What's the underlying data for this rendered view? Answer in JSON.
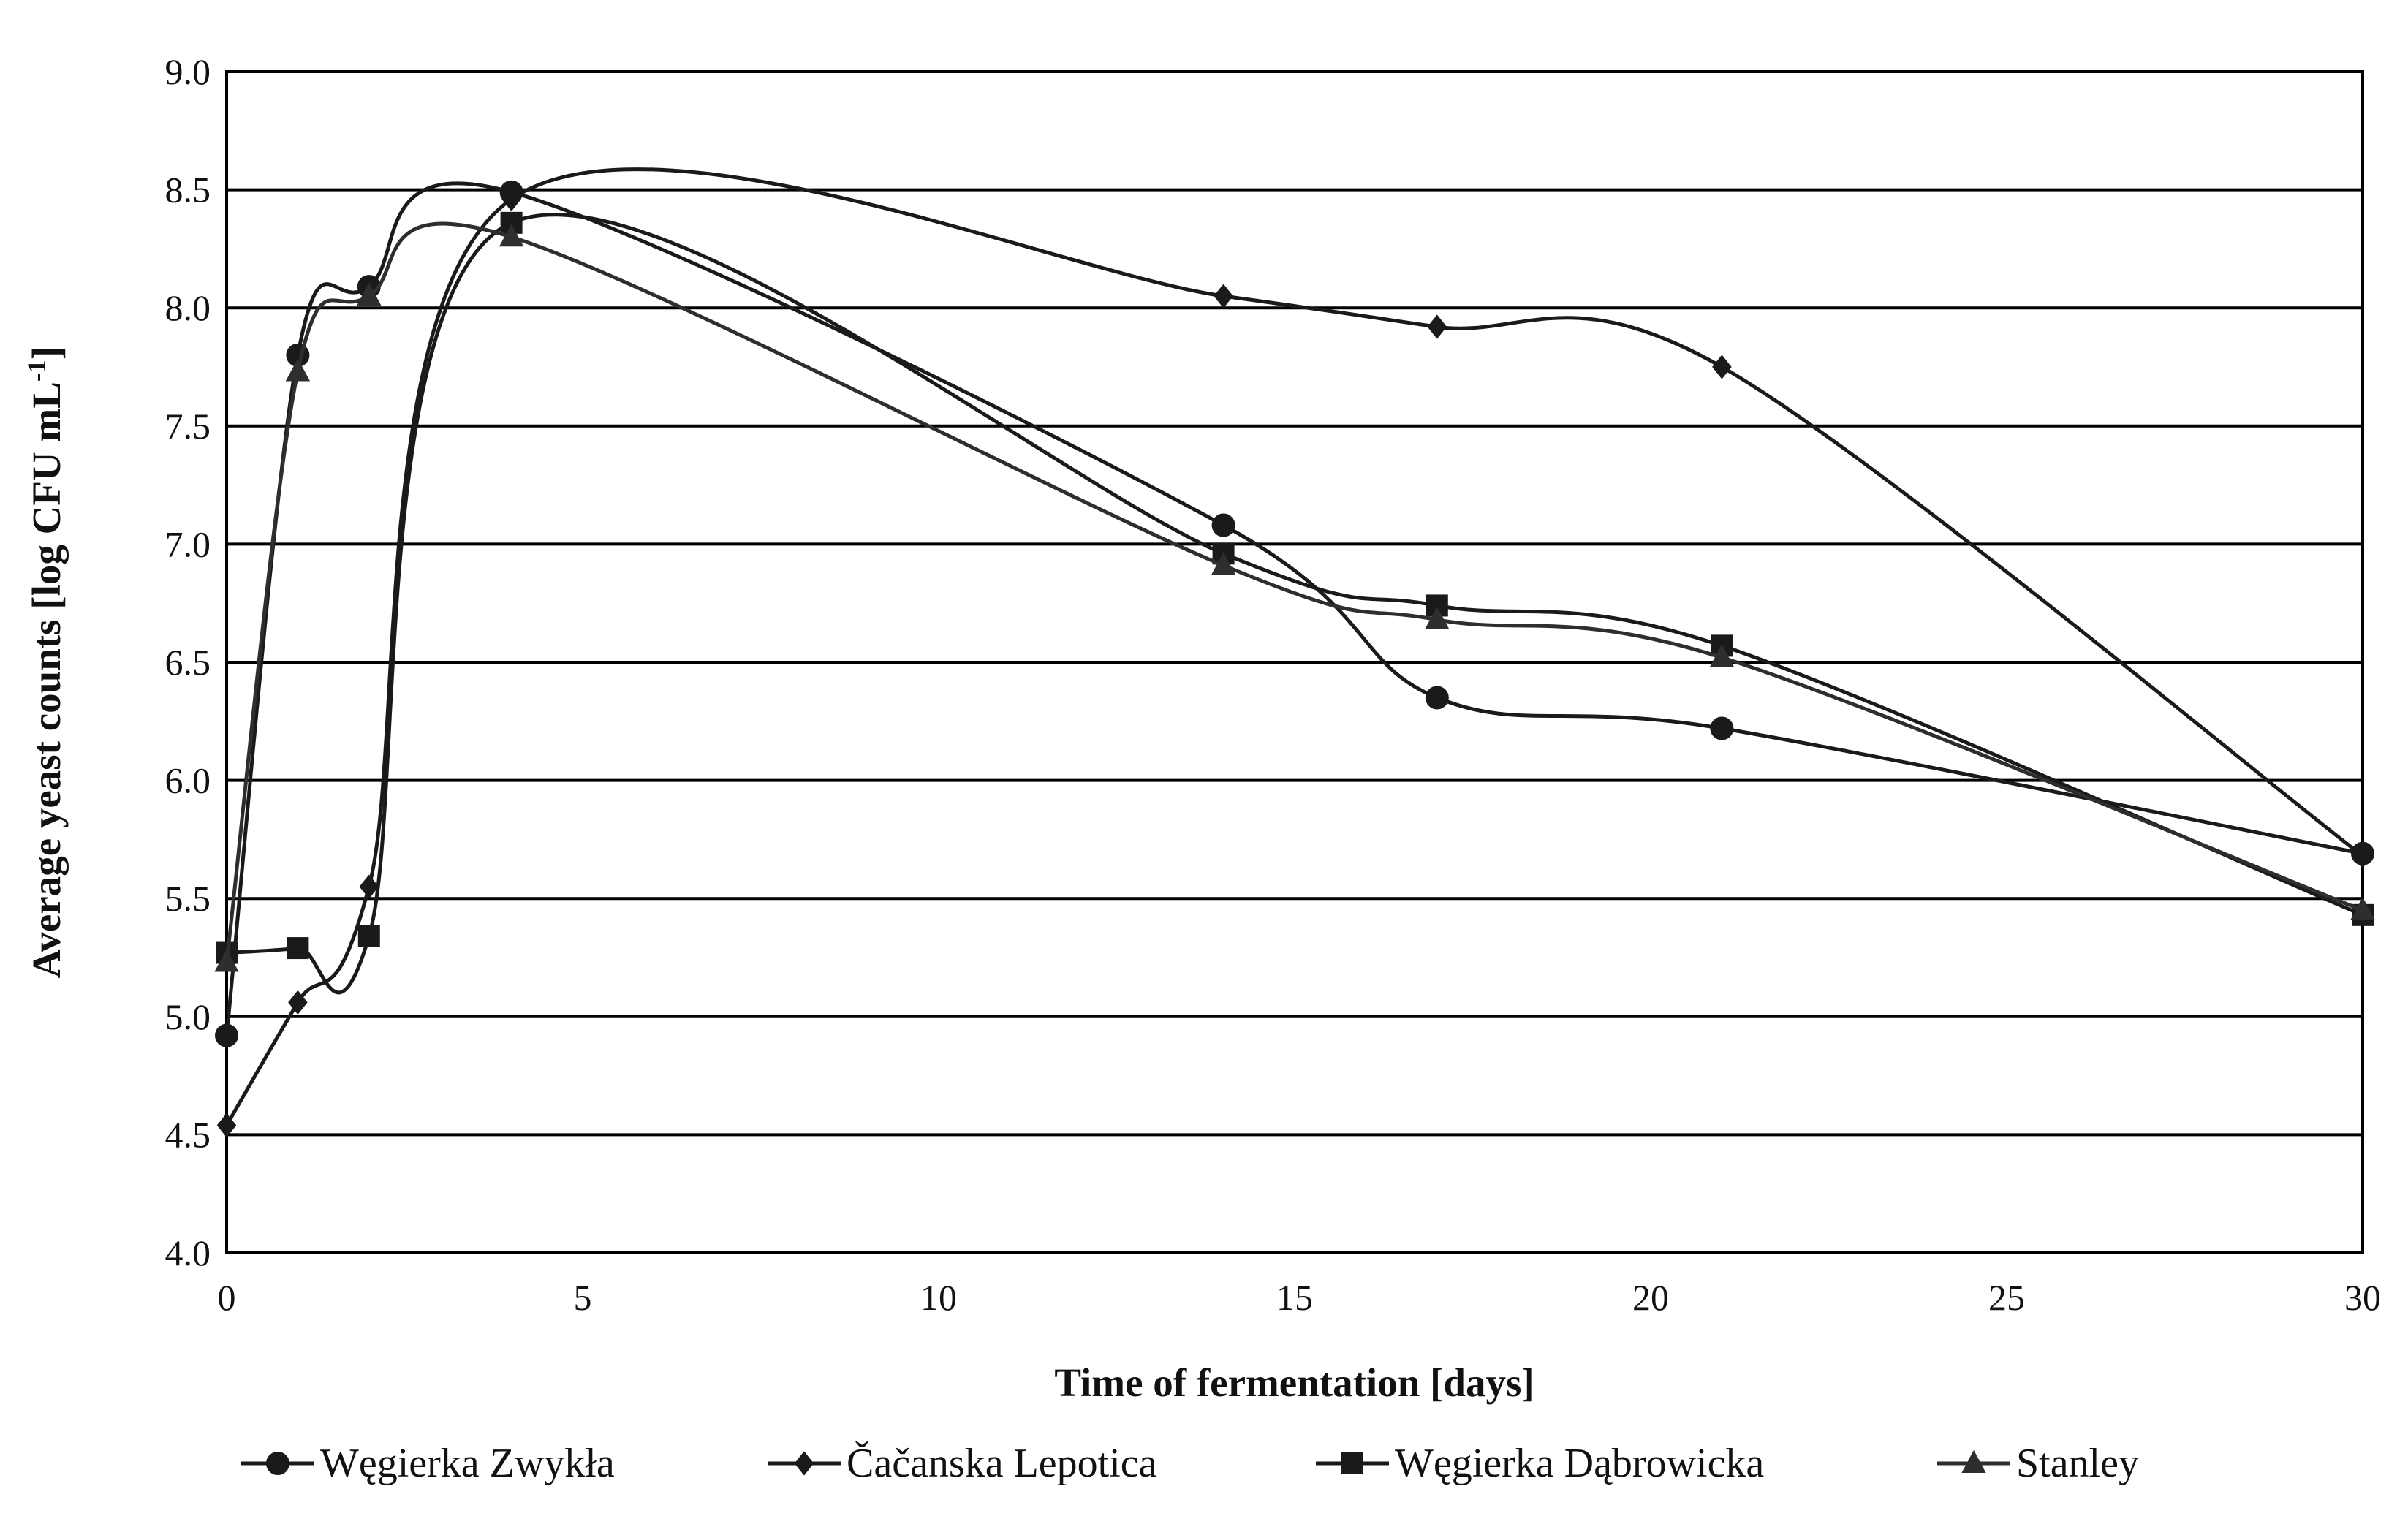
{
  "chart_data": {
    "type": "line",
    "title": "",
    "xlabel": "Time of fermentation [days]",
    "ylabel": "Average yeast counts [log CFU mL",
    "ylabel_superscript": "-1",
    "ylabel_suffix": "]",
    "xlim": [
      0,
      30
    ],
    "ylim": [
      4.0,
      9.0
    ],
    "xticks": [
      0,
      5,
      10,
      15,
      20,
      25,
      30
    ],
    "xtick_labels": [
      "0",
      "5",
      "10",
      "15",
      "20",
      "25",
      "30"
    ],
    "yticks": [
      4.0,
      4.5,
      5.0,
      5.5,
      6.0,
      6.5,
      7.0,
      7.5,
      8.0,
      8.5,
      9.0
    ],
    "ytick_labels": [
      "4.0",
      "4.5",
      "5.0",
      "5.5",
      "6.0",
      "6.5",
      "7.0",
      "7.5",
      "8.0",
      "8.5",
      "9.0"
    ],
    "grid": "horizontal",
    "legend_position": "bottom",
    "series": [
      {
        "name": "Węgierka Zwykła",
        "marker": "circle",
        "color": "#1a1a1a",
        "x": [
          0,
          1,
          2,
          4,
          14,
          17,
          21,
          30
        ],
        "y": [
          4.92,
          7.8,
          8.09,
          8.49,
          7.08,
          6.35,
          6.22,
          5.69
        ]
      },
      {
        "name": "Čačanska Lepotica",
        "marker": "diamond",
        "color": "#1a1a1a",
        "x": [
          0,
          1,
          2,
          4,
          14,
          17,
          21,
          30
        ],
        "y": [
          4.54,
          5.06,
          5.55,
          8.46,
          8.05,
          7.92,
          7.75,
          5.68
        ]
      },
      {
        "name": "Węgierka Dąbrowicka",
        "marker": "square",
        "color": "#1a1a1a",
        "x": [
          0,
          1,
          2,
          4,
          14,
          17,
          21,
          30
        ],
        "y": [
          5.27,
          5.29,
          5.34,
          8.36,
          6.96,
          6.74,
          6.57,
          5.43
        ]
      },
      {
        "name": "Stanley",
        "marker": "triangle",
        "color": "#2e2e2e",
        "x": [
          0,
          1,
          2,
          4,
          14,
          17,
          21,
          30
        ],
        "y": [
          5.23,
          7.73,
          8.05,
          8.3,
          6.91,
          6.68,
          6.52,
          5.45
        ]
      }
    ]
  }
}
